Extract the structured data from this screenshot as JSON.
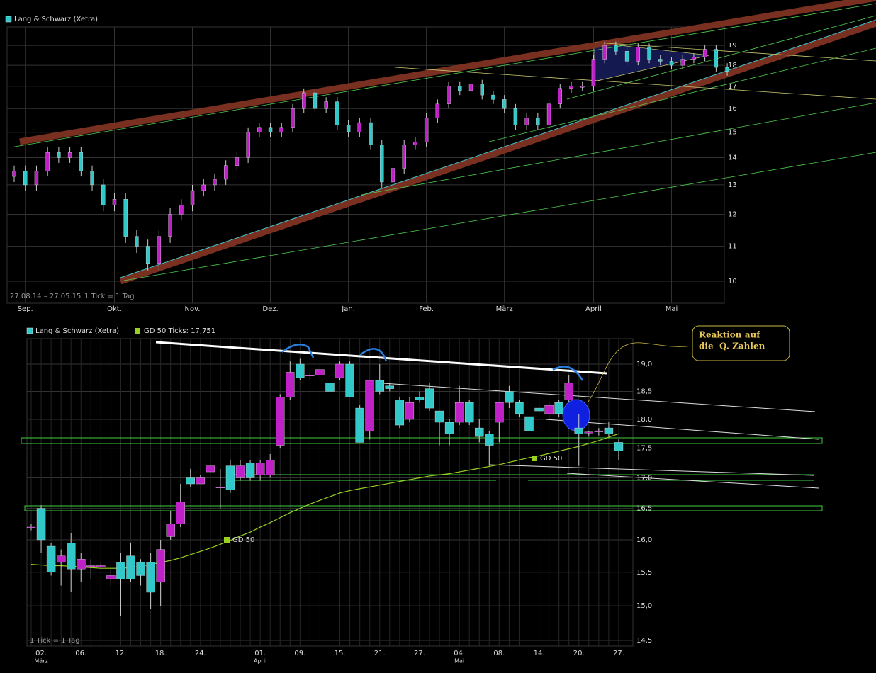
{
  "chart_data": [
    {
      "type": "candlestick",
      "legend": "Lang & Schwarz (Xetra)",
      "range_label": "27.08.14 – 27.05.15",
      "tick_label": "1 Tick = 1 Tag",
      "up_color": "#c020c8",
      "down_color": "#30c8c8",
      "log": true,
      "grid": true,
      "ylim": [
        9.42,
        19.98
      ],
      "yticks": [
        10,
        11,
        12,
        13,
        14,
        15,
        16,
        17,
        18,
        19
      ],
      "categories": [
        null,
        "Sep.",
        null,
        null,
        null,
        null,
        null,
        null,
        null,
        "Okt.",
        null,
        null,
        null,
        null,
        null,
        null,
        "Nov.",
        null,
        null,
        null,
        null,
        null,
        null,
        "Dez.",
        null,
        null,
        null,
        null,
        null,
        null,
        "Jan.",
        null,
        null,
        null,
        null,
        null,
        null,
        "Feb.",
        null,
        null,
        null,
        null,
        null,
        null,
        "März",
        null,
        null,
        null,
        null,
        null,
        null,
        null,
        "April",
        null,
        null,
        null,
        null,
        null,
        null,
        "Mai",
        null,
        null,
        null,
        null,
        null
      ],
      "open": [
        13.3,
        13.5,
        13.0,
        13.5,
        14.2,
        14.0,
        14.2,
        13.5,
        13.0,
        12.3,
        12.5,
        11.3,
        11.0,
        10.5,
        11.3,
        12.0,
        12.3,
        12.8,
        13.0,
        13.2,
        13.7,
        14.0,
        15.0,
        15.2,
        15.0,
        15.2,
        16.0,
        16.7,
        16.0,
        16.3,
        15.3,
        15.0,
        15.4,
        14.5,
        13.1,
        13.6,
        14.5,
        14.6,
        15.6,
        16.2,
        17.0,
        16.8,
        17.1,
        16.6,
        16.4,
        16.0,
        15.3,
        15.6,
        15.3,
        16.2,
        16.9,
        17.0,
        17.0,
        18.3,
        19.0,
        18.7,
        18.2,
        18.9,
        18.3,
        18.2,
        18.0,
        18.3,
        18.4,
        18.8,
        17.9
      ],
      "high": [
        13.7,
        13.7,
        13.7,
        14.4,
        14.4,
        14.4,
        14.4,
        13.7,
        13.2,
        12.7,
        12.7,
        11.5,
        11.2,
        11.5,
        12.2,
        12.5,
        13.0,
        13.2,
        13.4,
        13.9,
        14.2,
        15.2,
        15.4,
        15.4,
        15.4,
        16.2,
        16.9,
        16.9,
        16.5,
        16.5,
        15.5,
        15.6,
        15.6,
        14.7,
        13.8,
        14.7,
        14.8,
        15.8,
        16.4,
        17.2,
        17.2,
        17.3,
        17.3,
        16.8,
        16.6,
        16.2,
        15.8,
        15.8,
        16.4,
        17.1,
        17.2,
        17.2,
        18.5,
        19.2,
        19.2,
        18.9,
        19.1,
        19.1,
        18.5,
        18.4,
        18.5,
        18.6,
        19.0,
        19.0,
        18.1
      ],
      "low": [
        13.1,
        12.8,
        12.8,
        13.3,
        13.8,
        13.8,
        13.3,
        12.8,
        12.1,
        12.1,
        11.1,
        10.8,
        10.3,
        10.3,
        11.1,
        11.8,
        12.1,
        12.6,
        12.8,
        13.0,
        13.5,
        13.8,
        14.8,
        14.8,
        14.8,
        15.0,
        15.8,
        15.8,
        15.8,
        15.1,
        14.8,
        14.8,
        14.3,
        12.9,
        12.9,
        13.4,
        14.3,
        14.4,
        15.4,
        16.0,
        16.6,
        16.6,
        16.4,
        16.2,
        15.8,
        15.1,
        15.1,
        15.1,
        15.1,
        16.0,
        16.7,
        16.8,
        16.8,
        18.1,
        18.5,
        18.0,
        18.0,
        18.1,
        18.0,
        17.8,
        17.8,
        18.1,
        18.2,
        17.7,
        17.5
      ],
      "close": [
        13.5,
        13.0,
        13.5,
        14.2,
        14.0,
        14.2,
        13.5,
        13.0,
        12.3,
        12.5,
        11.3,
        11.0,
        10.5,
        11.3,
        12.0,
        12.3,
        12.8,
        13.0,
        13.2,
        13.7,
        14.0,
        15.0,
        15.2,
        15.0,
        15.2,
        16.0,
        16.7,
        16.0,
        16.3,
        15.3,
        15.0,
        15.4,
        14.5,
        13.1,
        13.6,
        14.5,
        14.6,
        15.6,
        16.2,
        17.0,
        16.8,
        17.1,
        16.6,
        16.4,
        16.0,
        15.3,
        15.6,
        15.3,
        16.2,
        16.9,
        17.0,
        17.0,
        18.3,
        19.0,
        18.7,
        18.2,
        18.9,
        18.3,
        18.2,
        18.0,
        18.3,
        18.4,
        18.8,
        17.9,
        17.7
      ]
    },
    {
      "type": "candlestick",
      "legend": "Lang & Schwarz (Xetra)",
      "tick_label": "1 Tick = 1 Tag",
      "up_color": "#c020c8",
      "down_color": "#30c8c8",
      "log": true,
      "grid": true,
      "ylim": [
        14.42,
        19.48
      ],
      "yticks": [
        {
          "value": 14.5,
          "label": "14,5"
        },
        {
          "value": 15,
          "label": "15,0"
        },
        {
          "value": 15.5,
          "label": "15,5"
        },
        {
          "value": 16,
          "label": "16,0"
        },
        {
          "value": 16.5,
          "label": "16,5"
        },
        {
          "value": 17,
          "label": "17,0"
        },
        {
          "value": 17.5,
          "label": "17,5"
        },
        {
          "value": 18,
          "label": "18,0"
        },
        {
          "value": 18.5,
          "label": "18,5"
        },
        {
          "value": 19,
          "label": "19,0"
        }
      ],
      "categories": [
        null,
        "02.",
        null,
        null,
        null,
        "06.",
        null,
        null,
        null,
        "12.",
        null,
        null,
        null,
        "18.",
        null,
        null,
        null,
        "24.",
        null,
        null,
        null,
        null,
        null,
        "01.",
        null,
        null,
        null,
        "09.",
        null,
        null,
        null,
        "15.",
        null,
        null,
        null,
        "21.",
        null,
        null,
        null,
        "27.",
        null,
        null,
        null,
        "04.",
        null,
        null,
        null,
        "08.",
        null,
        null,
        null,
        "14.",
        null,
        null,
        null,
        "20.",
        null,
        null,
        null,
        "27."
      ],
      "months": [
        null,
        "März",
        null,
        null,
        null,
        null,
        null,
        null,
        null,
        null,
        null,
        null,
        null,
        null,
        null,
        null,
        null,
        null,
        null,
        null,
        null,
        null,
        null,
        "April",
        null,
        null,
        null,
        null,
        null,
        null,
        null,
        null,
        null,
        null,
        null,
        null,
        null,
        null,
        null,
        null,
        null,
        null,
        null,
        "Mai",
        null,
        null,
        null,
        null,
        null,
        null,
        null,
        null,
        null,
        null,
        null,
        null,
        null,
        null,
        null,
        null
      ],
      "open": [
        16.2,
        16.5,
        15.9,
        15.65,
        15.95,
        15.55,
        15.6,
        15.58,
        15.4,
        15.65,
        15.75,
        15.65,
        15.65,
        15.35,
        16.05,
        16.25,
        17.0,
        16.9,
        17.1,
        16.85,
        17.2,
        17.0,
        17.25,
        17.05,
        17.05,
        17.55,
        18.4,
        19.0,
        18.8,
        18.8,
        18.65,
        18.75,
        19.0,
        18.2,
        17.8,
        18.7,
        18.6,
        18.35,
        18.0,
        18.4,
        18.55,
        18.15,
        17.95,
        17.95,
        18.3,
        17.85,
        17.75,
        17.95,
        18.5,
        18.3,
        18.05,
        18.2,
        18.1,
        18.3,
        18.35,
        17.85,
        17.78,
        17.8,
        17.85,
        17.6
      ],
      "high": [
        16.25,
        16.55,
        15.95,
        15.85,
        16.1,
        15.8,
        15.7,
        15.65,
        15.55,
        15.8,
        15.95,
        15.7,
        15.8,
        16.0,
        16.45,
        16.9,
        17.15,
        17.05,
        17.2,
        17.15,
        17.3,
        17.3,
        17.3,
        17.3,
        17.4,
        18.45,
        19.05,
        19.1,
        18.85,
        18.95,
        18.7,
        19.05,
        19.05,
        18.25,
        18.7,
        19.0,
        18.65,
        18.4,
        18.4,
        18.5,
        18.65,
        18.15,
        18.0,
        18.6,
        18.35,
        18.0,
        17.8,
        18.3,
        18.6,
        18.35,
        18.1,
        18.3,
        18.3,
        18.35,
        18.8,
        18.1,
        17.8,
        17.85,
        17.95,
        17.65
      ],
      "low": [
        16.15,
        15.8,
        15.45,
        15.3,
        15.2,
        15.35,
        15.4,
        15.55,
        15.3,
        14.85,
        15.35,
        15.3,
        14.95,
        15.0,
        16.0,
        16.2,
        16.85,
        16.9,
        17.1,
        16.5,
        16.75,
        16.95,
        16.95,
        16.95,
        17.0,
        17.5,
        18.35,
        18.7,
        18.7,
        18.75,
        18.45,
        18.7,
        18.4,
        17.6,
        17.65,
        18.45,
        18.5,
        17.85,
        17.95,
        18.3,
        18.15,
        17.55,
        17.55,
        17.9,
        17.9,
        17.6,
        17.2,
        17.6,
        18.2,
        18.05,
        17.75,
        18.1,
        18.0,
        18.05,
        18.3,
        17.2,
        17.7,
        17.72,
        17.7,
        17.3
      ],
      "close": [
        16.2,
        16.0,
        15.5,
        15.75,
        15.55,
        15.7,
        15.6,
        15.6,
        15.45,
        15.4,
        15.4,
        15.45,
        15.2,
        15.85,
        16.25,
        16.6,
        16.9,
        17.0,
        17.2,
        16.85,
        16.8,
        17.2,
        17.0,
        17.25,
        17.3,
        18.4,
        18.85,
        18.75,
        18.8,
        18.9,
        18.5,
        19.0,
        18.4,
        17.6,
        18.7,
        18.5,
        18.55,
        17.9,
        18.3,
        18.35,
        18.2,
        17.95,
        17.75,
        18.3,
        17.95,
        17.7,
        17.55,
        18.3,
        18.3,
        18.1,
        17.8,
        18.15,
        18.25,
        18.1,
        18.65,
        17.75,
        17.78,
        17.8,
        17.75,
        17.45
      ],
      "ma": {
        "name": "GD 50 Ticks: 17,751",
        "color": "#9ad020",
        "values": [
          15.62,
          15.61,
          15.6,
          15.6,
          15.59,
          15.58,
          15.57,
          15.56,
          15.56,
          15.56,
          15.57,
          15.59,
          15.62,
          15.65,
          15.68,
          15.72,
          15.77,
          15.82,
          15.87,
          15.93,
          15.99,
          16.06,
          16.12,
          16.2,
          16.27,
          16.35,
          16.43,
          16.5,
          16.57,
          16.63,
          16.69,
          16.75,
          16.79,
          16.82,
          16.85,
          16.88,
          16.91,
          16.94,
          16.97,
          17.0,
          17.03,
          17.05,
          17.07,
          17.1,
          17.13,
          17.16,
          17.19,
          17.22,
          17.26,
          17.3,
          17.34,
          17.37,
          17.41,
          17.45,
          17.49,
          17.53,
          17.58,
          17.63,
          17.69,
          17.75
        ]
      },
      "ma_labels": [
        "GD 50",
        "GD 50"
      ],
      "note": [
        "Reaktion auf",
        "die  Q. Zahlen"
      ]
    }
  ]
}
